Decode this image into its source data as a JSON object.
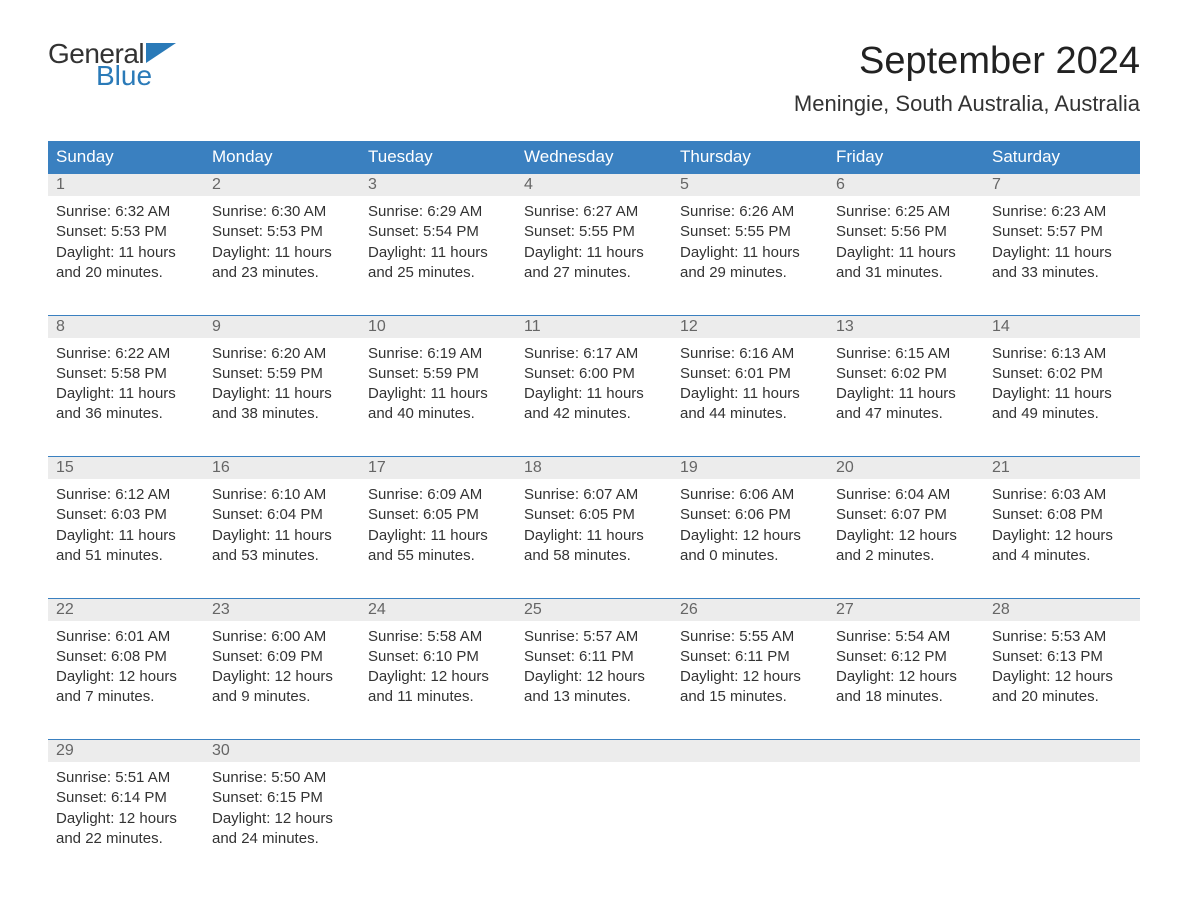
{
  "logo": {
    "word1": "General",
    "word2": "Blue",
    "flag_color": "#2a7ab8"
  },
  "title": "September 2024",
  "location": "Meningie, South Australia, Australia",
  "colors": {
    "header_bg": "#3a80c0",
    "header_text": "#ffffff",
    "daynum_bg": "#ececec",
    "daynum_text": "#666666",
    "rule": "#3a80c0",
    "body_text": "#333333",
    "background": "#ffffff"
  },
  "day_headers": [
    "Sunday",
    "Monday",
    "Tuesday",
    "Wednesday",
    "Thursday",
    "Friday",
    "Saturday"
  ],
  "weeks": [
    [
      {
        "n": "1",
        "sunrise": "Sunrise: 6:32 AM",
        "sunset": "Sunset: 5:53 PM",
        "day1": "Daylight: 11 hours",
        "day2": "and 20 minutes."
      },
      {
        "n": "2",
        "sunrise": "Sunrise: 6:30 AM",
        "sunset": "Sunset: 5:53 PM",
        "day1": "Daylight: 11 hours",
        "day2": "and 23 minutes."
      },
      {
        "n": "3",
        "sunrise": "Sunrise: 6:29 AM",
        "sunset": "Sunset: 5:54 PM",
        "day1": "Daylight: 11 hours",
        "day2": "and 25 minutes."
      },
      {
        "n": "4",
        "sunrise": "Sunrise: 6:27 AM",
        "sunset": "Sunset: 5:55 PM",
        "day1": "Daylight: 11 hours",
        "day2": "and 27 minutes."
      },
      {
        "n": "5",
        "sunrise": "Sunrise: 6:26 AM",
        "sunset": "Sunset: 5:55 PM",
        "day1": "Daylight: 11 hours",
        "day2": "and 29 minutes."
      },
      {
        "n": "6",
        "sunrise": "Sunrise: 6:25 AM",
        "sunset": "Sunset: 5:56 PM",
        "day1": "Daylight: 11 hours",
        "day2": "and 31 minutes."
      },
      {
        "n": "7",
        "sunrise": "Sunrise: 6:23 AM",
        "sunset": "Sunset: 5:57 PM",
        "day1": "Daylight: 11 hours",
        "day2": "and 33 minutes."
      }
    ],
    [
      {
        "n": "8",
        "sunrise": "Sunrise: 6:22 AM",
        "sunset": "Sunset: 5:58 PM",
        "day1": "Daylight: 11 hours",
        "day2": "and 36 minutes."
      },
      {
        "n": "9",
        "sunrise": "Sunrise: 6:20 AM",
        "sunset": "Sunset: 5:59 PM",
        "day1": "Daylight: 11 hours",
        "day2": "and 38 minutes."
      },
      {
        "n": "10",
        "sunrise": "Sunrise: 6:19 AM",
        "sunset": "Sunset: 5:59 PM",
        "day1": "Daylight: 11 hours",
        "day2": "and 40 minutes."
      },
      {
        "n": "11",
        "sunrise": "Sunrise: 6:17 AM",
        "sunset": "Sunset: 6:00 PM",
        "day1": "Daylight: 11 hours",
        "day2": "and 42 minutes."
      },
      {
        "n": "12",
        "sunrise": "Sunrise: 6:16 AM",
        "sunset": "Sunset: 6:01 PM",
        "day1": "Daylight: 11 hours",
        "day2": "and 44 minutes."
      },
      {
        "n": "13",
        "sunrise": "Sunrise: 6:15 AM",
        "sunset": "Sunset: 6:02 PM",
        "day1": "Daylight: 11 hours",
        "day2": "and 47 minutes."
      },
      {
        "n": "14",
        "sunrise": "Sunrise: 6:13 AM",
        "sunset": "Sunset: 6:02 PM",
        "day1": "Daylight: 11 hours",
        "day2": "and 49 minutes."
      }
    ],
    [
      {
        "n": "15",
        "sunrise": "Sunrise: 6:12 AM",
        "sunset": "Sunset: 6:03 PM",
        "day1": "Daylight: 11 hours",
        "day2": "and 51 minutes."
      },
      {
        "n": "16",
        "sunrise": "Sunrise: 6:10 AM",
        "sunset": "Sunset: 6:04 PM",
        "day1": "Daylight: 11 hours",
        "day2": "and 53 minutes."
      },
      {
        "n": "17",
        "sunrise": "Sunrise: 6:09 AM",
        "sunset": "Sunset: 6:05 PM",
        "day1": "Daylight: 11 hours",
        "day2": "and 55 minutes."
      },
      {
        "n": "18",
        "sunrise": "Sunrise: 6:07 AM",
        "sunset": "Sunset: 6:05 PM",
        "day1": "Daylight: 11 hours",
        "day2": "and 58 minutes."
      },
      {
        "n": "19",
        "sunrise": "Sunrise: 6:06 AM",
        "sunset": "Sunset: 6:06 PM",
        "day1": "Daylight: 12 hours",
        "day2": "and 0 minutes."
      },
      {
        "n": "20",
        "sunrise": "Sunrise: 6:04 AM",
        "sunset": "Sunset: 6:07 PM",
        "day1": "Daylight: 12 hours",
        "day2": "and 2 minutes."
      },
      {
        "n": "21",
        "sunrise": "Sunrise: 6:03 AM",
        "sunset": "Sunset: 6:08 PM",
        "day1": "Daylight: 12 hours",
        "day2": "and 4 minutes."
      }
    ],
    [
      {
        "n": "22",
        "sunrise": "Sunrise: 6:01 AM",
        "sunset": "Sunset: 6:08 PM",
        "day1": "Daylight: 12 hours",
        "day2": "and 7 minutes."
      },
      {
        "n": "23",
        "sunrise": "Sunrise: 6:00 AM",
        "sunset": "Sunset: 6:09 PM",
        "day1": "Daylight: 12 hours",
        "day2": "and 9 minutes."
      },
      {
        "n": "24",
        "sunrise": "Sunrise: 5:58 AM",
        "sunset": "Sunset: 6:10 PM",
        "day1": "Daylight: 12 hours",
        "day2": "and 11 minutes."
      },
      {
        "n": "25",
        "sunrise": "Sunrise: 5:57 AM",
        "sunset": "Sunset: 6:11 PM",
        "day1": "Daylight: 12 hours",
        "day2": "and 13 minutes."
      },
      {
        "n": "26",
        "sunrise": "Sunrise: 5:55 AM",
        "sunset": "Sunset: 6:11 PM",
        "day1": "Daylight: 12 hours",
        "day2": "and 15 minutes."
      },
      {
        "n": "27",
        "sunrise": "Sunrise: 5:54 AM",
        "sunset": "Sunset: 6:12 PM",
        "day1": "Daylight: 12 hours",
        "day2": "and 18 minutes."
      },
      {
        "n": "28",
        "sunrise": "Sunrise: 5:53 AM",
        "sunset": "Sunset: 6:13 PM",
        "day1": "Daylight: 12 hours",
        "day2": "and 20 minutes."
      }
    ],
    [
      {
        "n": "29",
        "sunrise": "Sunrise: 5:51 AM",
        "sunset": "Sunset: 6:14 PM",
        "day1": "Daylight: 12 hours",
        "day2": "and 22 minutes."
      },
      {
        "n": "30",
        "sunrise": "Sunrise: 5:50 AM",
        "sunset": "Sunset: 6:15 PM",
        "day1": "Daylight: 12 hours",
        "day2": "and 24 minutes."
      },
      null,
      null,
      null,
      null,
      null
    ]
  ]
}
